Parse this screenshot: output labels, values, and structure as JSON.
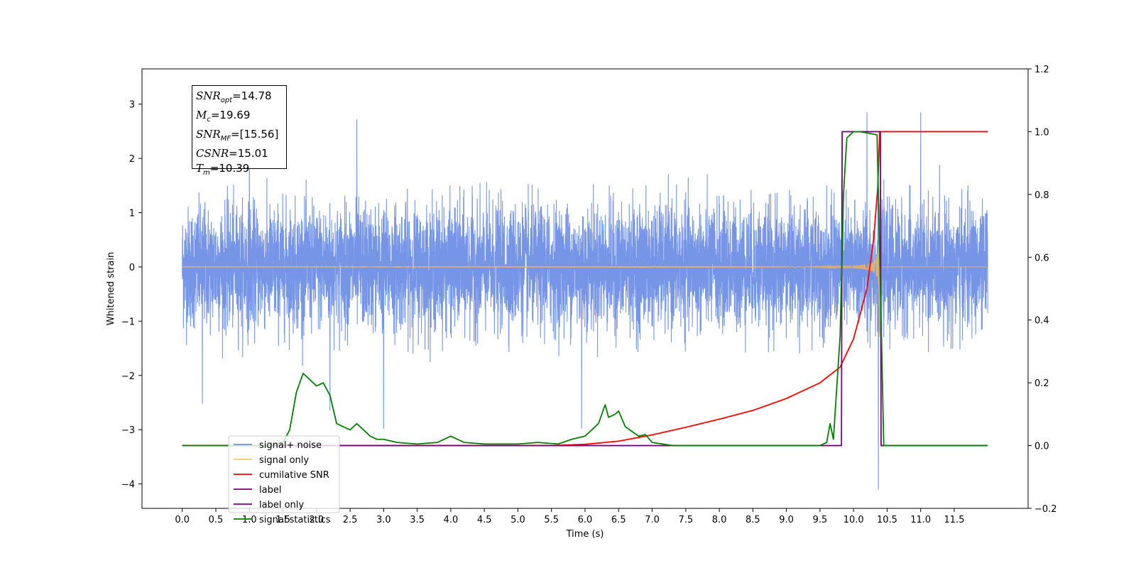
{
  "chart_data": {
    "type": "line",
    "xlabel": "Time (s)",
    "ylabel": "Whitened strain",
    "xlim": [
      -0.6,
      12.6
    ],
    "ylim": [
      -4.45,
      3.65
    ],
    "y2lim": [
      -0.2,
      1.2
    ],
    "x_ticks": [
      0.0,
      0.5,
      1.0,
      1.5,
      2.0,
      2.5,
      3.0,
      3.5,
      4.0,
      4.5,
      5.0,
      5.5,
      6.0,
      6.5,
      7.0,
      7.5,
      8.0,
      8.5,
      9.0,
      9.5,
      10.0,
      10.5,
      11.0,
      11.5
    ],
    "x_tick_labels": [
      "0.0",
      "0.5",
      "1.0",
      "1.5",
      "2.0",
      "2.5",
      "3.0",
      "3.5",
      "4.0",
      "4.5",
      "5.0",
      "5.5",
      "6.0",
      "6.5",
      "7.0",
      "7.5",
      "8.0",
      "8.5",
      "9.0",
      "9.5",
      "10.0",
      "10.5",
      "11.0",
      "11.5"
    ],
    "y_ticks": [
      -4,
      -3,
      -2,
      -1,
      0,
      1,
      2,
      3
    ],
    "y_tick_labels": [
      "−4",
      "−3",
      "−2",
      "−1",
      "0",
      "1",
      "2",
      "3"
    ],
    "y2_ticks": [
      -0.2,
      0.0,
      0.2,
      0.4,
      0.6,
      0.8,
      1.0,
      1.2
    ],
    "y2_tick_labels": [
      "−0.2",
      "0.0",
      "0.2",
      "0.4",
      "0.6",
      "0.8",
      "1.0",
      "1.2"
    ],
    "grid": false,
    "legend_position": "lower-left",
    "annotation": {
      "lines": [
        {
          "sym": "SNR",
          "sub": "opt",
          "value": "=14.78"
        },
        {
          "sym": "M",
          "sub": "c",
          "value": "=19.69"
        },
        {
          "sym": "SNR",
          "sub": "MF",
          "value": "=[15.56]"
        },
        {
          "sym": "CSNR",
          "sub": "",
          "value": "=15.01"
        },
        {
          "sym": "T",
          "sub": "m",
          "value": "=10.39"
        }
      ]
    },
    "series": [
      {
        "name": "signal+ noise",
        "color": "#6f8fe6",
        "axis": "left",
        "kind": "noise",
        "x_range": [
          0.0,
          12.0
        ],
        "envelope": 1.2,
        "peaks": [
          [
            0.3,
            -2.52
          ],
          [
            1.0,
            2.35
          ],
          [
            2.6,
            2.72
          ],
          [
            2.2,
            -2.65
          ],
          [
            3.0,
            -2.98
          ],
          [
            5.95,
            -2.98
          ],
          [
            10.2,
            2.85
          ],
          [
            10.37,
            -4.1
          ],
          [
            11.0,
            2.85
          ]
        ]
      },
      {
        "name": "signal only",
        "color": "#f0b060",
        "axis": "left",
        "kind": "chirp",
        "t_merger": 10.39,
        "x_range": [
          0.0,
          12.0
        ]
      },
      {
        "name": "cumilative SNR",
        "color": "#ff0000",
        "axis": "right",
        "x": [
          0.0,
          5.5,
          6.0,
          6.5,
          7.0,
          7.5,
          8.0,
          8.5,
          9.0,
          9.5,
          9.8,
          10.0,
          10.2,
          10.3,
          10.36,
          10.39,
          10.4,
          12.0
        ],
        "y": [
          0.0,
          0.0,
          0.004,
          0.014,
          0.034,
          0.058,
          0.084,
          0.112,
          0.15,
          0.2,
          0.25,
          0.34,
          0.5,
          0.66,
          0.82,
          1.0,
          1.0,
          1.0
        ]
      },
      {
        "name": "label",
        "color": "#7a0080",
        "axis": "right",
        "x": [
          0.0,
          9.82,
          9.83,
          10.4,
          10.41,
          11.99
        ],
        "y": [
          0.0,
          0.0,
          1.0,
          1.0,
          0.0,
          0.0
        ]
      },
      {
        "name": "label only",
        "color": "#7a0080",
        "axis": "right",
        "x": [],
        "y": []
      },
      {
        "name": "signal statistics",
        "color": "#008000",
        "axis": "right",
        "x": [
          0.0,
          1.3,
          1.5,
          1.6,
          1.7,
          1.8,
          1.9,
          2.0,
          2.1,
          2.2,
          2.3,
          2.4,
          2.5,
          2.6,
          2.7,
          2.8,
          2.9,
          3.0,
          3.2,
          3.5,
          3.8,
          4.0,
          4.2,
          4.5,
          5.0,
          5.3,
          5.6,
          5.8,
          6.0,
          6.1,
          6.2,
          6.3,
          6.35,
          6.45,
          6.5,
          6.6,
          6.8,
          6.9,
          7.0,
          7.3,
          9.3,
          9.5,
          9.6,
          9.65,
          9.7,
          9.8,
          9.85,
          9.9,
          10.0,
          10.1,
          10.35,
          10.4,
          10.45,
          12.0
        ],
        "y": [
          0.0,
          0.0,
          0.01,
          0.05,
          0.17,
          0.23,
          0.21,
          0.19,
          0.2,
          0.16,
          0.07,
          0.06,
          0.05,
          0.07,
          0.05,
          0.03,
          0.02,
          0.02,
          0.01,
          0.005,
          0.01,
          0.03,
          0.01,
          0.005,
          0.005,
          0.01,
          0.005,
          0.02,
          0.03,
          0.05,
          0.07,
          0.13,
          0.09,
          0.1,
          0.11,
          0.06,
          0.03,
          0.035,
          0.01,
          0.0,
          0.0,
          0.0,
          0.01,
          0.07,
          0.02,
          0.35,
          0.8,
          0.98,
          1.0,
          1.0,
          0.99,
          0.5,
          0.0,
          0.0
        ]
      }
    ]
  }
}
